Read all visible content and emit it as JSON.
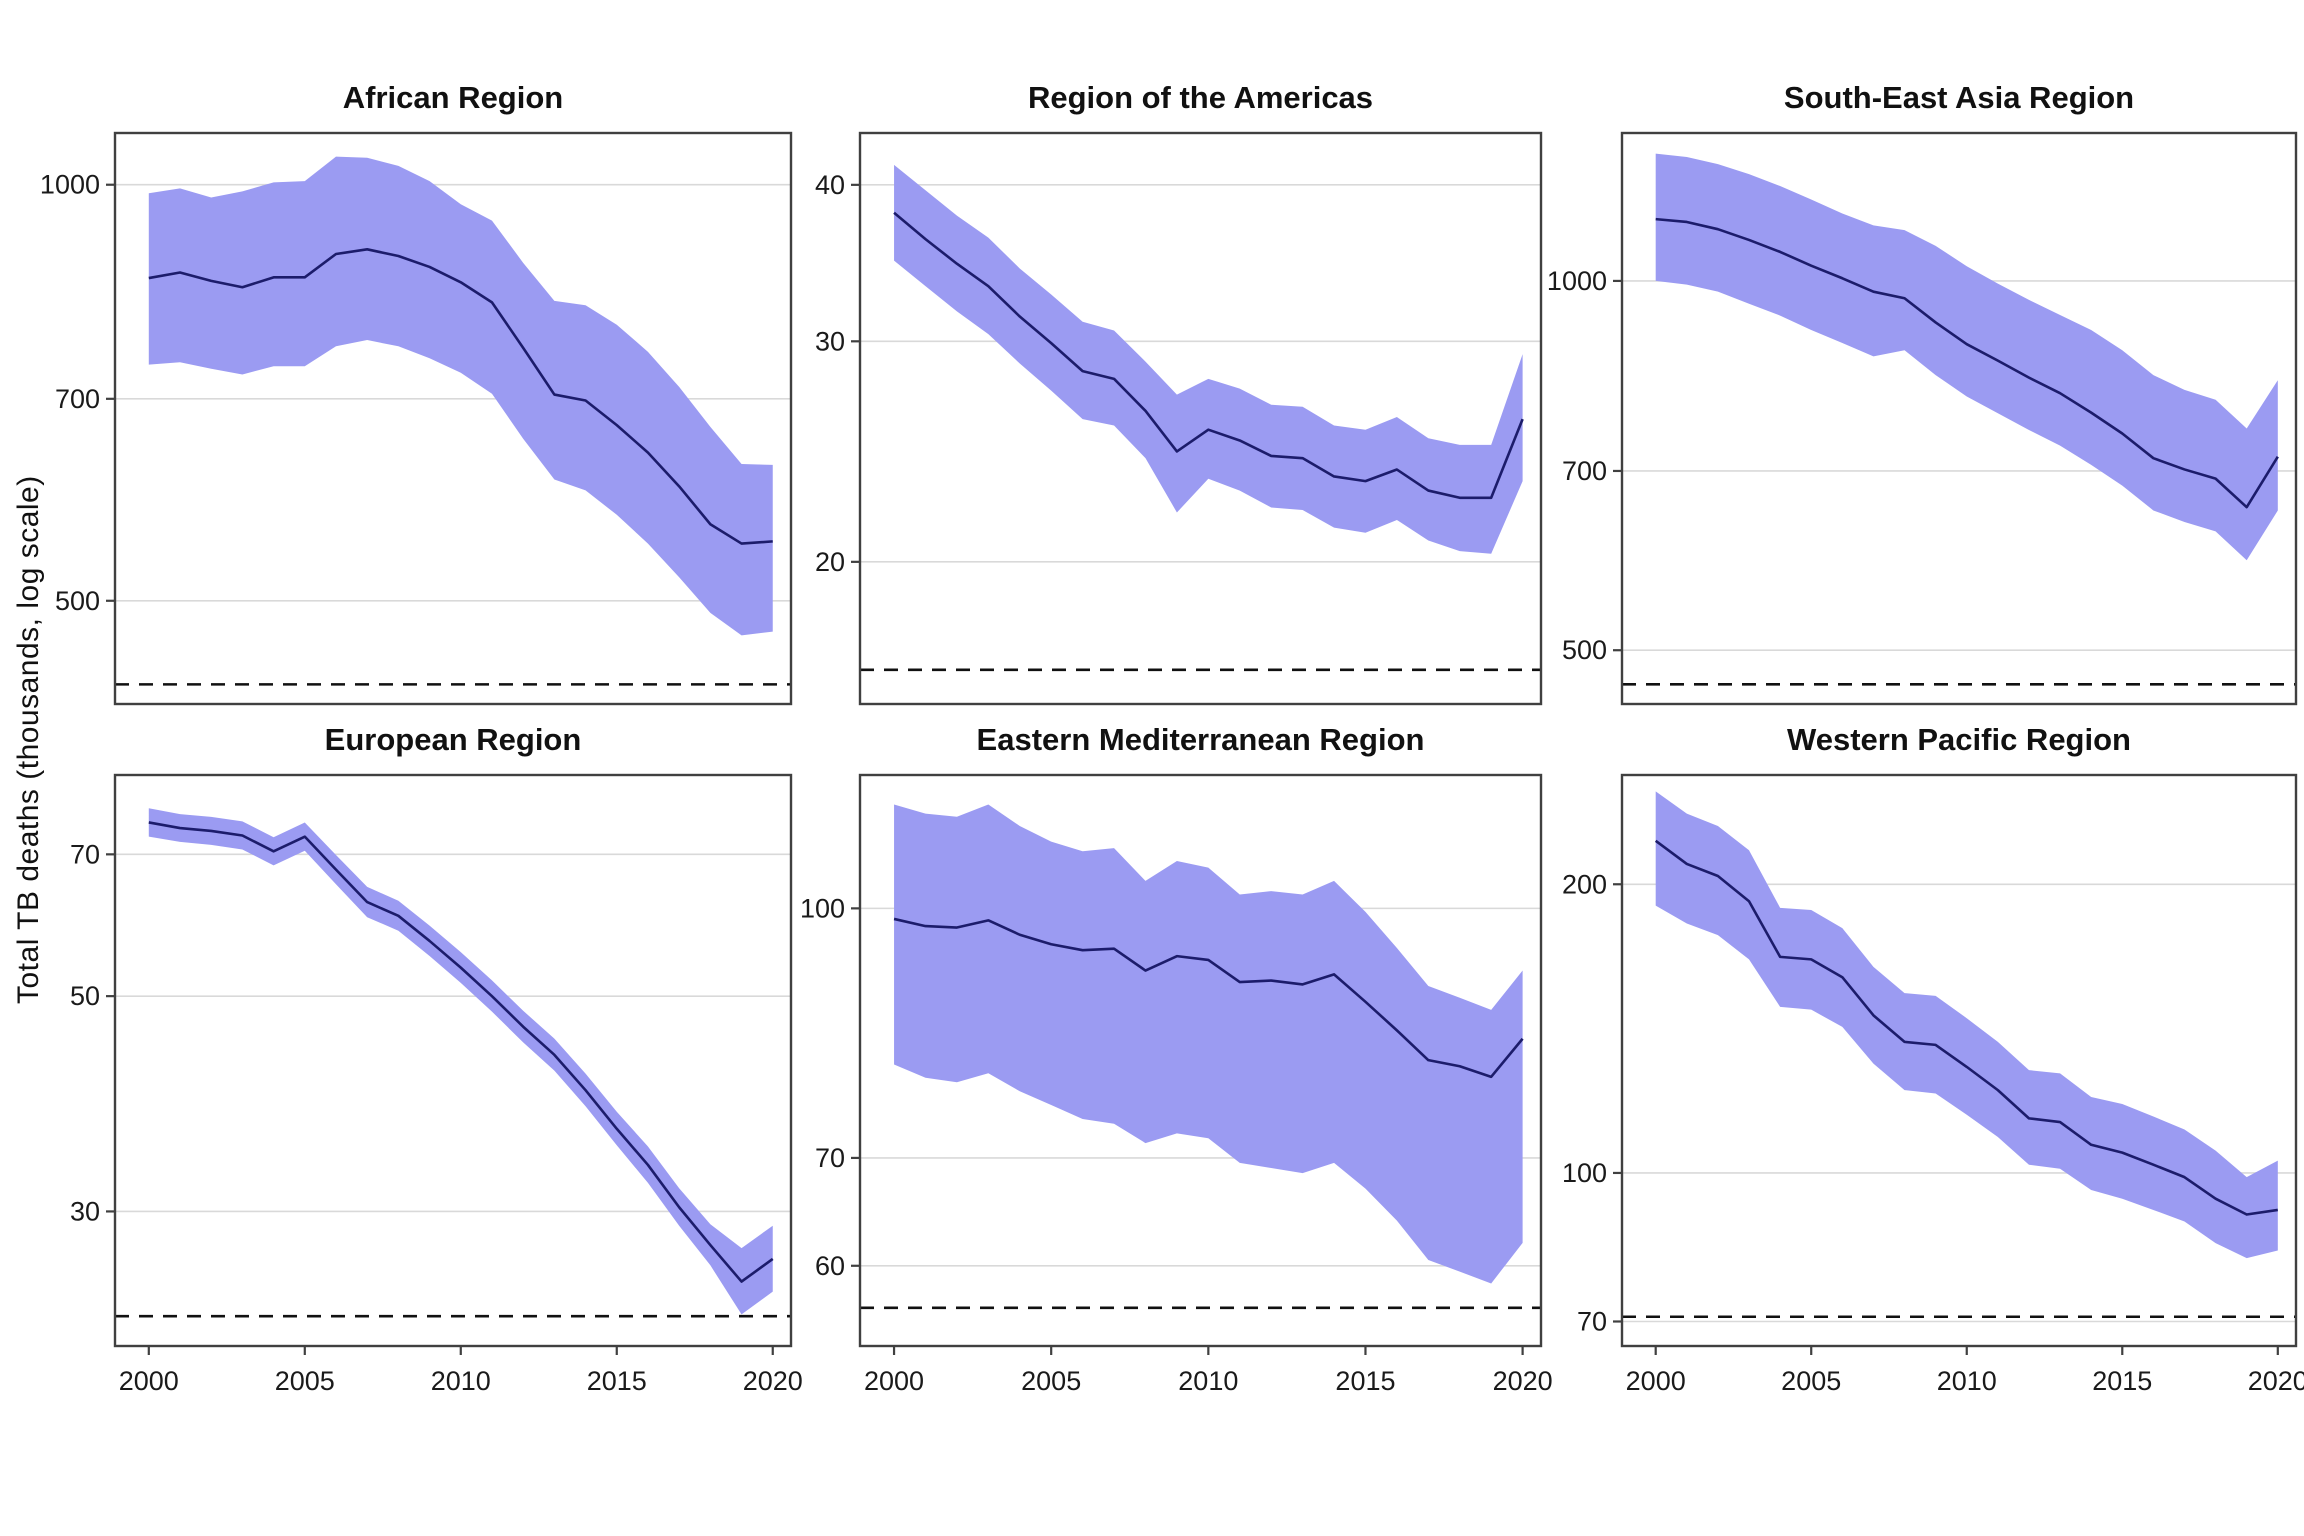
{
  "figure": {
    "ylabel": "Total TB deaths (thousands, log scale)",
    "x_axis_tick_labels": [
      "2000",
      "2005",
      "2010",
      "2015",
      "2020"
    ]
  },
  "style": {
    "band_color": "#9b9bf2",
    "line_color": "#1c1c6b",
    "grid_color": "#d9d9d9",
    "axis_color": "#404040",
    "dashed_color": "#111111",
    "text_color": "#1a1a1a",
    "background": "#ffffff"
  },
  "years": [
    2000,
    2001,
    2002,
    2003,
    2004,
    2005,
    2006,
    2007,
    2008,
    2009,
    2010,
    2011,
    2012,
    2013,
    2014,
    2015,
    2016,
    2017,
    2018,
    2019,
    2020
  ],
  "x_ticks": [
    2000,
    2005,
    2010,
    2015,
    2020
  ],
  "chart_data": [
    {
      "type": "line",
      "title": "African Region",
      "y_ticks": [
        1000,
        700,
        500
      ],
      "ylim": [
        421,
        1090
      ],
      "dashed_line_y": 435,
      "legend": "none",
      "grid": "horizontal",
      "series": [
        {
          "name": "best estimate",
          "values": [
            856,
            864,
            852,
            843,
            857,
            857,
            891,
            898,
            888,
            872,
            850,
            822,
            762,
            705,
            698,
            670,
            640,
            605,
            568,
            550,
            552
          ]
        },
        {
          "name": "lower bound",
          "values": [
            741,
            744,
            736,
            729,
            739,
            739,
            764,
            772,
            764,
            749,
            731,
            706,
            655,
            612,
            601,
            577,
            550,
            520,
            490,
            472,
            475
          ]
        },
        {
          "name": "upper bound",
          "values": [
            986,
            994,
            979,
            989,
            1004,
            1006,
            1048,
            1046,
            1032,
            1006,
            968,
            942,
            878,
            824,
            818,
            792,
            757,
            714,
            668,
            628,
            627
          ]
        }
      ]
    },
    {
      "type": "line",
      "title": "Region of the Americas",
      "y_ticks": [
        40,
        30,
        20
      ],
      "ylim": [
        15.4,
        44
      ],
      "dashed_line_y": 16.4,
      "legend": "none",
      "grid": "horizontal",
      "series": [
        {
          "name": "best estimate",
          "values": [
            38.0,
            36.2,
            34.6,
            33.2,
            31.4,
            29.9,
            28.4,
            28.0,
            26.4,
            24.5,
            25.5,
            25.0,
            24.3,
            24.2,
            23.4,
            23.2,
            23.7,
            22.8,
            22.5,
            22.5,
            26.0
          ]
        },
        {
          "name": "lower bound",
          "values": [
            34.8,
            33.2,
            31.7,
            30.4,
            28.8,
            27.4,
            26.0,
            25.7,
            24.2,
            21.9,
            23.3,
            22.8,
            22.1,
            22.0,
            21.3,
            21.1,
            21.6,
            20.8,
            20.4,
            20.3,
            23.2
          ]
        },
        {
          "name": "upper bound",
          "values": [
            41.5,
            39.6,
            37.8,
            36.3,
            34.3,
            32.7,
            31.1,
            30.6,
            28.9,
            27.2,
            28.0,
            27.5,
            26.7,
            26.6,
            25.7,
            25.5,
            26.1,
            25.1,
            24.8,
            24.8,
            29.3
          ]
        }
      ]
    },
    {
      "type": "line",
      "title": "South-East Asia Region",
      "y_ticks": [
        1000,
        700,
        500
      ],
      "ylim": [
        452,
        1320
      ],
      "dashed_line_y": 469,
      "legend": "none",
      "grid": "horizontal",
      "series": [
        {
          "name": "best estimate",
          "values": [
            1123,
            1117,
            1102,
            1080,
            1056,
            1029,
            1005,
            980,
            968,
            925,
            888,
            861,
            834,
            810,
            781,
            751,
            717,
            702,
            690,
            654,
            719
          ]
        },
        {
          "name": "lower bound",
          "values": [
            1000,
            993,
            980,
            958,
            937,
            912,
            890,
            868,
            878,
            838,
            805,
            780,
            756,
            734,
            708,
            681,
            650,
            636,
            625,
            592,
            650
          ]
        },
        {
          "name": "upper bound",
          "values": [
            1270,
            1262,
            1245,
            1222,
            1195,
            1165,
            1135,
            1110,
            1100,
            1068,
            1028,
            995,
            965,
            938,
            912,
            878,
            838,
            815,
            800,
            758,
            830
          ]
        }
      ]
    },
    {
      "type": "line",
      "title": "European Region",
      "y_ticks": [
        70,
        50,
        30
      ],
      "ylim": [
        21.8,
        84.5
      ],
      "dashed_line_y": 23.4,
      "legend": "none",
      "grid": "horizontal",
      "series": [
        {
          "name": "best estimate",
          "values": [
            75.5,
            74.5,
            74.0,
            73.2,
            70.5,
            73.0,
            67.5,
            62.5,
            60.5,
            57.0,
            53.5,
            50.0,
            46.5,
            43.5,
            40.0,
            36.5,
            33.5,
            30.3,
            27.7,
            25.4,
            26.8
          ]
        },
        {
          "name": "lower bound",
          "values": [
            73.0,
            72.1,
            71.6,
            70.8,
            68.2,
            70.6,
            65.2,
            60.3,
            58.4,
            55.0,
            51.6,
            48.2,
            44.8,
            41.9,
            38.5,
            35.1,
            32.1,
            29.0,
            26.4,
            23.5,
            24.8
          ]
        },
        {
          "name": "upper bound",
          "values": [
            78.1,
            77.0,
            76.5,
            75.7,
            72.9,
            75.5,
            69.9,
            64.8,
            62.7,
            59.1,
            55.5,
            51.9,
            48.3,
            45.2,
            41.6,
            38.0,
            35.0,
            31.7,
            29.1,
            27.5,
            29.0
          ]
        }
      ]
    },
    {
      "type": "line",
      "title": "Eastern Mediterranean Region",
      "y_ticks": [
        100,
        70,
        60
      ],
      "ylim": [
        53.5,
        121
      ],
      "dashed_line_y": 56.5,
      "legend": "none",
      "grid": "horizontal",
      "series": [
        {
          "name": "best estimate",
          "values": [
            98.5,
            97.5,
            97.3,
            98.3,
            96.3,
            95.0,
            94.2,
            94.4,
            91.5,
            93.4,
            92.9,
            90.0,
            90.2,
            89.7,
            91.0,
            87.5,
            84.0,
            80.5,
            79.8,
            78.6,
            83.0
          ]
        },
        {
          "name": "lower bound",
          "values": [
            80.0,
            78.5,
            78.0,
            79.0,
            77.0,
            75.5,
            74.0,
            73.5,
            71.5,
            72.5,
            72.0,
            69.5,
            69.0,
            68.5,
            69.5,
            67.0,
            64.0,
            60.5,
            59.5,
            58.5,
            62.0
          ]
        },
        {
          "name": "upper bound",
          "values": [
            116,
            114.5,
            114,
            116,
            112.5,
            110,
            108.5,
            109,
            104,
            107,
            106,
            102,
            102.5,
            102,
            104,
            99.5,
            94.5,
            89.5,
            88,
            86.5,
            91.5
          ]
        }
      ]
    },
    {
      "type": "line",
      "title": "Western Pacific Region",
      "y_ticks": [
        200,
        100,
        70
      ],
      "ylim": [
        66,
        260
      ],
      "dashed_line_y": 70.8,
      "legend": "none",
      "grid": "horizontal",
      "series": [
        {
          "name": "best estimate",
          "values": [
            222,
            210,
            204,
            192,
            168,
            167,
            160,
            146,
            137,
            136,
            129,
            122,
            114,
            113,
            107,
            105,
            102,
            99,
            94,
            90.5,
            91.5
          ]
        },
        {
          "name": "lower bound",
          "values": [
            190,
            182,
            177,
            167,
            149,
            148,
            142,
            130,
            122,
            121,
            115,
            109,
            102,
            101,
            96,
            94,
            91.5,
            89,
            84.5,
            81.5,
            83
          ]
        },
        {
          "name": "upper bound",
          "values": [
            250,
            237,
            230,
            217,
            189,
            188,
            180,
            164,
            154,
            153,
            145,
            137,
            128,
            127,
            120,
            118,
            114.5,
            111,
            105.5,
            99,
            103
          ]
        }
      ]
    }
  ]
}
